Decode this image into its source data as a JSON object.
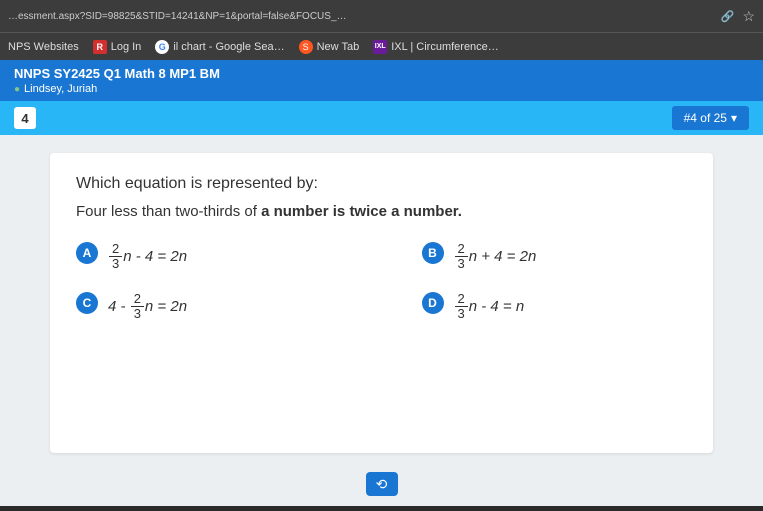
{
  "browser": {
    "url": "…essment.aspx?SID=98825&STID=14241&NP=1&portal=false&FOCUS_…",
    "link_icon": "🔗",
    "star_icon": "☆"
  },
  "bookmarks": {
    "items": [
      {
        "label": "NPS Websites",
        "icon": ""
      },
      {
        "label": "Log In",
        "icon": "R"
      },
      {
        "label": "il chart - Google Sea…",
        "icon": "G"
      },
      {
        "label": "New Tab",
        "icon": "S"
      },
      {
        "label": "IXL | Circumference…",
        "icon": "IXL"
      }
    ]
  },
  "quiz": {
    "course": "NNPS SY2425 Q1 Math 8 MP1 BM",
    "student": "Lindsey, Juriah",
    "current": "4",
    "progress": "#4 of 25",
    "dropdown": "▾"
  },
  "question": {
    "prompt": "Which equation is represented by:",
    "sub_prefix": "Four less than two-thirds of ",
    "sub_bold": "a number is twice a number.",
    "options": {
      "a": {
        "letter": "A"
      },
      "b": {
        "letter": "B"
      },
      "c": {
        "letter": "C"
      },
      "d": {
        "letter": "D"
      }
    }
  },
  "footer": {
    "help_icon": "⟲"
  },
  "colors": {
    "primary": "#1976d2",
    "light": "#29b6f6",
    "bg": "#eceff1"
  }
}
